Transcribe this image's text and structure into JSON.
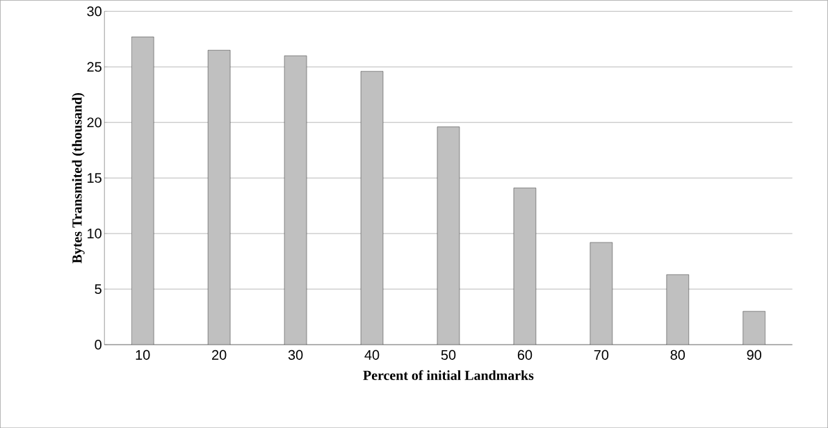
{
  "chart_data": {
    "type": "bar",
    "xlabel": "Percent of initial Landmarks",
    "ylabel": "Bytes Transmited (thousand)",
    "categories": [
      "10",
      "20",
      "30",
      "40",
      "50",
      "60",
      "70",
      "80",
      "90"
    ],
    "values": [
      27.7,
      26.5,
      26.0,
      24.6,
      19.6,
      14.1,
      9.2,
      6.3,
      3.0
    ],
    "color": "#c0c0c0",
    "ylim": [
      0,
      30
    ],
    "yticks": [
      0,
      5,
      10,
      15,
      20,
      25,
      30
    ],
    "grid": "y"
  }
}
